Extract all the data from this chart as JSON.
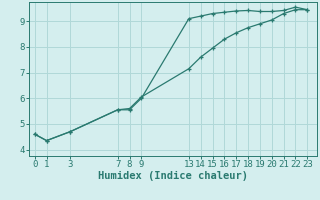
{
  "xlabel": "Humidex (Indice chaleur)",
  "bg_color": "#d4eeee",
  "grid_color": "#b0d8d8",
  "line_color": "#2a7a70",
  "marker_color": "#2a7a70",
  "xticks": [
    0,
    1,
    3,
    7,
    8,
    9,
    13,
    14,
    15,
    16,
    17,
    18,
    19,
    20,
    21,
    22,
    23
  ],
  "yticks": [
    4,
    5,
    6,
    7,
    8,
    9
  ],
  "line1_x": [
    0,
    1,
    3,
    7,
    8,
    9,
    13,
    14,
    15,
    16,
    17,
    18,
    19,
    20,
    21,
    22,
    23
  ],
  "line1_y": [
    4.6,
    4.35,
    4.7,
    5.55,
    5.55,
    6.0,
    9.1,
    9.2,
    9.3,
    9.35,
    9.4,
    9.42,
    9.38,
    9.38,
    9.42,
    9.55,
    9.45
  ],
  "line2_x": [
    0,
    1,
    3,
    7,
    8,
    9,
    13,
    14,
    15,
    16,
    17,
    18,
    19,
    20,
    21,
    22,
    23
  ],
  "line2_y": [
    4.6,
    4.35,
    4.7,
    5.55,
    5.6,
    6.05,
    7.15,
    7.6,
    7.95,
    8.3,
    8.55,
    8.75,
    8.9,
    9.05,
    9.3,
    9.45,
    9.45
  ],
  "xlim": [
    -0.5,
    23.8
  ],
  "ylim": [
    3.75,
    9.75
  ],
  "xlabel_fontsize": 7.5,
  "tick_fontsize": 6.5
}
